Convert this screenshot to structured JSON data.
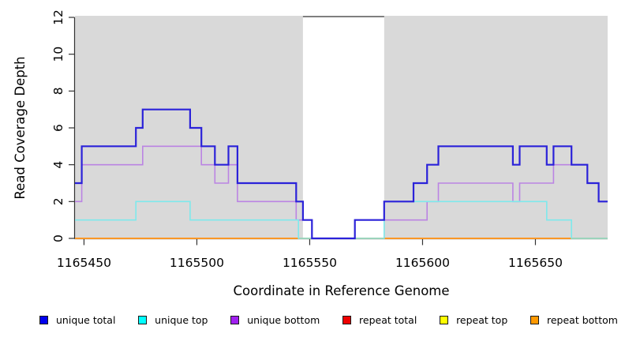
{
  "chart_data": {
    "type": "line",
    "subtype": "step",
    "title": "",
    "xlabel": "Coordinate in Reference Genome",
    "ylabel": "Read Coverage Depth",
    "xlim": [
      1165446,
      1165682
    ],
    "ylim": [
      0,
      12
    ],
    "x_ticks": [
      1165450,
      1165500,
      1165550,
      1165600,
      1165650
    ],
    "y_ticks": [
      0,
      2,
      4,
      6,
      8,
      10,
      12
    ],
    "grid": false,
    "plot_background": "#d9d9d9",
    "highlight_band": {
      "x_start": 1165547,
      "x_end": 1165583,
      "fill": "#ffffff",
      "top_line_color": "#7f7f7f"
    },
    "legend_position": "bottom",
    "draw_order": [
      "repeat top",
      "repeat total",
      "repeat bottom",
      "unique bottom",
      "unique top",
      "unique total"
    ],
    "series": [
      {
        "name": "unique total",
        "line_color": "#2b22d9",
        "legend_color": "#0000ee",
        "line_width": 2.2,
        "steps": [
          [
            1165446,
            3
          ],
          [
            1165449,
            5
          ],
          [
            1165473,
            6
          ],
          [
            1165476,
            7
          ],
          [
            1165497,
            6
          ],
          [
            1165502,
            5
          ],
          [
            1165508,
            4
          ],
          [
            1165514,
            5
          ],
          [
            1165518,
            3
          ],
          [
            1165544,
            2
          ],
          [
            1165547,
            1
          ],
          [
            1165551,
            0
          ],
          [
            1165570,
            1
          ],
          [
            1165583,
            2
          ],
          [
            1165596,
            3
          ],
          [
            1165602,
            4
          ],
          [
            1165607,
            5
          ],
          [
            1165640,
            4
          ],
          [
            1165643,
            5
          ],
          [
            1165655,
            4
          ],
          [
            1165658,
            5
          ],
          [
            1165666,
            4
          ],
          [
            1165673,
            3
          ],
          [
            1165678,
            2
          ],
          [
            1165682,
            2
          ]
        ]
      },
      {
        "name": "unique top",
        "line_color": "#7ee9ec",
        "legend_color": "#00ffff",
        "line_width": 1.6,
        "steps": [
          [
            1165446,
            1
          ],
          [
            1165473,
            2
          ],
          [
            1165497,
            1
          ],
          [
            1165545,
            0
          ],
          [
            1165583,
            2
          ],
          [
            1165655,
            1
          ],
          [
            1165666,
            0
          ],
          [
            1165682,
            0
          ]
        ]
      },
      {
        "name": "unique bottom",
        "line_color": "#bb84e3",
        "legend_color": "#a020f0",
        "line_width": 1.6,
        "steps": [
          [
            1165446,
            2
          ],
          [
            1165449,
            4
          ],
          [
            1165476,
            5
          ],
          [
            1165502,
            4
          ],
          [
            1165508,
            3
          ],
          [
            1165514,
            4
          ],
          [
            1165518,
            2
          ],
          [
            1165544,
            1
          ],
          [
            1165551,
            0
          ],
          [
            1165570,
            1
          ],
          [
            1165602,
            2
          ],
          [
            1165607,
            3
          ],
          [
            1165640,
            2
          ],
          [
            1165643,
            3
          ],
          [
            1165658,
            4
          ],
          [
            1165673,
            3
          ],
          [
            1165678,
            2
          ],
          [
            1165682,
            2
          ]
        ]
      },
      {
        "name": "repeat total",
        "line_color": "#de2010",
        "legend_color": "#ee0000",
        "line_width": 1.4,
        "steps": [
          [
            1165446,
            0
          ],
          [
            1165682,
            0
          ]
        ]
      },
      {
        "name": "repeat top",
        "line_color": "#f2ef1f",
        "legend_color": "#ffff00",
        "line_width": 1.4,
        "steps": [
          [
            1165446,
            0
          ],
          [
            1165682,
            0
          ]
        ]
      },
      {
        "name": "repeat bottom",
        "line_color": "#ff9d26",
        "legend_color": "#ff9900",
        "line_width": 1.8,
        "steps": [
          [
            1165446,
            0
          ],
          [
            1165682,
            0
          ]
        ]
      }
    ]
  }
}
